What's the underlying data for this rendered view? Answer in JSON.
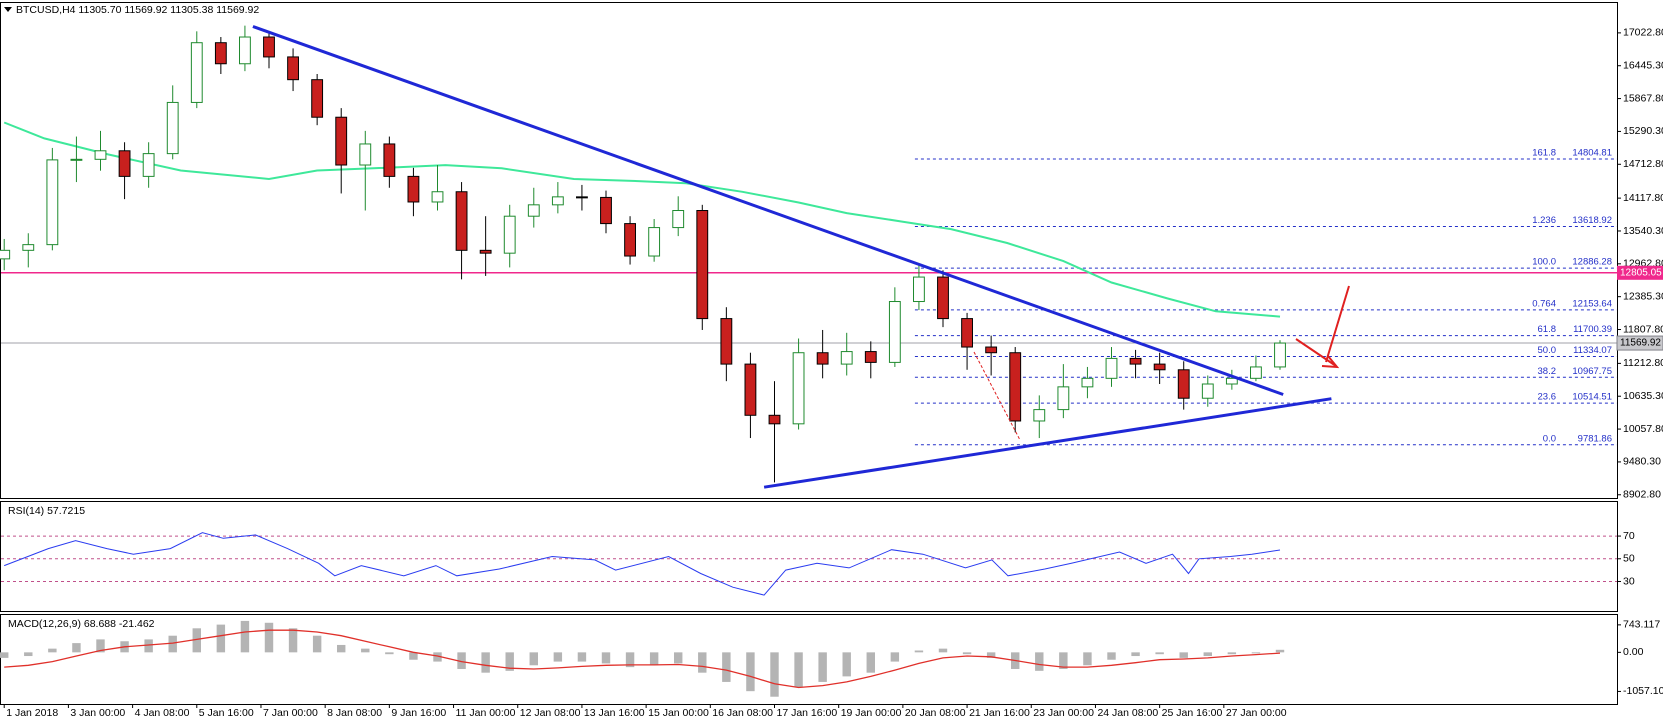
{
  "chart_data": [
    {
      "type": "candlestick",
      "header": "BTCUSD,H4  11305.70 11569.92 11305.38 11569.92",
      "x": [
        0,
        3,
        6,
        9,
        12,
        15,
        18,
        21,
        24,
        27,
        30,
        33,
        36,
        39,
        42,
        45,
        48,
        51,
        54,
        57,
        60,
        63,
        66,
        69,
        72,
        75,
        78,
        81,
        84,
        87,
        90,
        93,
        96,
        99,
        102,
        105,
        108,
        111,
        114,
        117,
        120,
        123,
        126,
        129,
        132,
        135,
        138,
        141,
        144,
        147,
        150,
        153,
        156,
        159
      ],
      "open": [
        13050,
        13200,
        13300,
        14790,
        14800,
        14950,
        14500,
        14900,
        15800,
        16850,
        16480,
        16950,
        16600,
        16200,
        15540,
        14700,
        15070,
        14500,
        14050,
        14230,
        13200,
        13150,
        13800,
        14000,
        14140,
        14130,
        13670,
        13100,
        13600,
        13900,
        12000,
        11200,
        10300,
        10150,
        11400,
        11200,
        11420,
        11230,
        12300,
        12730,
        12000,
        11500,
        11400,
        10200,
        10400,
        10800,
        10950,
        11300,
        11200,
        11100,
        10600,
        10850,
        10950,
        11150
      ],
      "high": [
        13400,
        13500,
        15000,
        15200,
        15300,
        15100,
        15100,
        16100,
        17050,
        16950,
        17150,
        17050,
        16750,
        16300,
        15700,
        15300,
        15200,
        14650,
        14700,
        14400,
        13800,
        14000,
        14300,
        14400,
        14350,
        14250,
        13800,
        13750,
        14150,
        14000,
        12200,
        11400,
        10900,
        11650,
        11800,
        11750,
        11600,
        12550,
        12950,
        12850,
        12100,
        11700,
        11500,
        10650,
        11200,
        11150,
        11500,
        11450,
        11400,
        11250,
        11000,
        11100,
        11350,
        11620
      ],
      "low": [
        12850,
        12900,
        13200,
        14400,
        14600,
        14100,
        14300,
        14800,
        15700,
        16300,
        16350,
        16400,
        16000,
        15400,
        14200,
        13900,
        14300,
        13800,
        13900,
        12690,
        12750,
        12900,
        13600,
        13850,
        13900,
        13500,
        12950,
        13000,
        13450,
        11800,
        10900,
        9900,
        9120,
        10050,
        10950,
        11000,
        10950,
        11150,
        12150,
        11850,
        11100,
        11000,
        10000,
        9900,
        10250,
        10600,
        10800,
        10950,
        10850,
        10400,
        10450,
        10750,
        10900,
        11100
      ],
      "close": [
        13200,
        13300,
        14790,
        14800,
        14950,
        14500,
        14900,
        15800,
        16850,
        16480,
        16950,
        16600,
        16200,
        15540,
        14700,
        15070,
        14500,
        14050,
        14230,
        13200,
        13150,
        13800,
        14000,
        14140,
        14130,
        13670,
        13100,
        13600,
        13900,
        12000,
        11200,
        10300,
        10150,
        11400,
        11200,
        11420,
        11230,
        12300,
        12730,
        12000,
        11500,
        11400,
        10200,
        10400,
        10800,
        10950,
        11300,
        11200,
        11100,
        10600,
        10850,
        10950,
        11150,
        11569.92
      ],
      "up_color": "#1f8a2e",
      "down_color": "#c8201e",
      "xlim": [
        -0.4,
        201
      ],
      "xticks": [
        {
          "value": 0,
          "label": "1 Jan 2018"
        },
        {
          "value": 8,
          "label": "3 Jan 00:00"
        },
        {
          "value": 16,
          "label": "4 Jan 08:00"
        },
        {
          "value": 24,
          "label": "5 Jan 16:00"
        },
        {
          "value": 32,
          "label": "7 Jan 00:00"
        },
        {
          "value": 40,
          "label": "8 Jan 08:00"
        },
        {
          "value": 48,
          "label": "9 Jan 16:00"
        },
        {
          "value": 56,
          "label": "11 Jan 00:00"
        },
        {
          "value": 64,
          "label": "12 Jan 08:00"
        },
        {
          "value": 72,
          "label": "13 Jan 16:00"
        },
        {
          "value": 80,
          "label": "15 Jan 00:00"
        },
        {
          "value": 88,
          "label": "16 Jan 08:00"
        },
        {
          "value": 96,
          "label": "17 Jan 16:00"
        },
        {
          "value": 104,
          "label": "19 Jan 00:00"
        },
        {
          "value": 112,
          "label": "20 Jan 08:00"
        },
        {
          "value": 120,
          "label": "21 Jan 16:00"
        },
        {
          "value": 128,
          "label": "23 Jan 00:00"
        },
        {
          "value": 136,
          "label": "24 Jan 08:00"
        },
        {
          "value": 144,
          "label": "25 Jan 16:00"
        },
        {
          "value": 152,
          "label": "27 Jan 00:00"
        }
      ],
      "ylim": [
        8846,
        17548
      ],
      "yticks": [
        {
          "value": 17022.8,
          "label": "17022.80"
        },
        {
          "value": 16445.3,
          "label": "16445.30"
        },
        {
          "value": 15867.8,
          "label": "15867.80"
        },
        {
          "value": 15290.3,
          "label": "15290.30"
        },
        {
          "value": 14712.8,
          "label": "14712.80"
        },
        {
          "value": 14117.8,
          "label": "14117.80"
        },
        {
          "value": 13540.3,
          "label": "13540.30"
        },
        {
          "value": 12962.8,
          "label": "12962.80"
        },
        {
          "value": 12385.3,
          "label": "12385.30"
        },
        {
          "value": 11807.8,
          "label": "11807.80"
        },
        {
          "value": 11212.8,
          "label": "11212.80"
        },
        {
          "value": 10635.3,
          "label": "10635.30"
        },
        {
          "value": 10057.8,
          "label": "10057.80"
        },
        {
          "value": 9480.3,
          "label": "9480.30"
        },
        {
          "value": 8902.8,
          "label": "8902.80"
        }
      ],
      "grid": false,
      "ma": {
        "color": "#3ee89a",
        "x": [
          0,
          5,
          13,
          22,
          33,
          39,
          46,
          55,
          62,
          71,
          79,
          85,
          92,
          99,
          105,
          112,
          118,
          125,
          132,
          138,
          145,
          151,
          159
        ],
        "values": [
          15448,
          15167,
          14885,
          14604,
          14454,
          14604,
          14642,
          14698,
          14642,
          14454,
          14417,
          14379,
          14229,
          14041,
          13854,
          13704,
          13573,
          13329,
          13010,
          12635,
          12354,
          12129,
          12035
        ]
      },
      "trendlines": [
        {
          "color": "#1f28d6",
          "x": [
            31,
            159.4
          ],
          "values": [
            17135,
            10666
          ]
        },
        {
          "color": "#1f28d6",
          "x": [
            94.7,
            165.4
          ],
          "values": [
            9035,
            10591
          ]
        }
      ],
      "fib": {
        "color": "#2430c8",
        "x_start": 113.5,
        "levels": [
          {
            "level": "161.8",
            "price": 14804.81
          },
          {
            "level": "1.236",
            "price": 13618.92
          },
          {
            "level": "100.0",
            "price": 12886.28
          },
          {
            "level": "0.764",
            "price": 12153.64
          },
          {
            "level": "61.8",
            "price": 11700.39
          },
          {
            "level": "50.0",
            "price": 11334.07
          },
          {
            "level": "38.2",
            "price": 10967.75
          },
          {
            "level": "23.6",
            "price": 10514.51
          },
          {
            "level": "0.0",
            "price": 9781.86
          }
        ]
      },
      "hline": {
        "value": 12805.05,
        "color": "#f0288c"
      },
      "current_price": 11569.92
    },
    {
      "type": "line",
      "title": "RSI(14) 57.7215",
      "x": [
        0,
        5.5,
        8.9,
        12.8,
        16.1,
        20.7,
        24.7,
        27.3,
        31.3,
        35.3,
        39.2,
        41.2,
        44.5,
        49.8,
        53.8,
        56.4,
        61.7,
        68.3,
        73.6,
        76.2,
        82.8,
        86.8,
        90.8,
        94.7,
        97.4,
        101.3,
        105.3,
        110.6,
        114.5,
        119.8,
        123.1,
        125.1,
        129.7,
        133,
        139,
        142.3,
        145.6,
        147.6,
        148.9,
        152.8,
        155.5,
        159
      ],
      "values": [
        44,
        59,
        66,
        59,
        54,
        59,
        73,
        68,
        71,
        59,
        46,
        35,
        44,
        35,
        44,
        35,
        41,
        52,
        49,
        40,
        52,
        37,
        25,
        18,
        40,
        46,
        42,
        58,
        54,
        42,
        49,
        35,
        41,
        46,
        56,
        46,
        54,
        37,
        50,
        52,
        54,
        57.7215
      ],
      "color": "#2a3cf0",
      "ylim": [
        4,
        100
      ],
      "yticks": [
        70,
        50,
        30
      ],
      "grid": true,
      "grid_color": "#c0508a"
    },
    {
      "type": "macd",
      "title": "MACD(12,26,9) 68.688 -21.462",
      "x": [
        0,
        3,
        6,
        9,
        12,
        15,
        18,
        21,
        24,
        27,
        30,
        33,
        36,
        39,
        42,
        45,
        48,
        51,
        54,
        57,
        60,
        63,
        66,
        69,
        72,
        75,
        78,
        81,
        84,
        87,
        90,
        93,
        96,
        99,
        102,
        105,
        108,
        111,
        114,
        117,
        120,
        123,
        126,
        129,
        132,
        135,
        138,
        141,
        144,
        147,
        150,
        153,
        156,
        159
      ],
      "series": [
        {
          "color": "#b4b4b4",
          "values": [
            -150,
            -100,
            100,
            250,
            350,
            300,
            350,
            450,
            650,
            750,
            850,
            800,
            650,
            450,
            200,
            100,
            -50,
            -200,
            -250,
            -450,
            -550,
            -500,
            -350,
            -250,
            -250,
            -300,
            -400,
            -350,
            -300,
            -550,
            -800,
            -1050,
            -1200,
            -950,
            -800,
            -650,
            -550,
            -250,
            50,
            100,
            -50,
            -150,
            -450,
            -500,
            -450,
            -350,
            -200,
            -100,
            -50,
            -150,
            -100,
            -50,
            0,
            68.688
          ]
        },
        {
          "color": "#e0302a",
          "values": [
            -400,
            -350,
            -250,
            -100,
            50,
            150,
            200,
            250,
            350,
            450,
            550,
            600,
            600,
            550,
            450,
            300,
            150,
            0,
            -100,
            -250,
            -350,
            -430,
            -450,
            -420,
            -380,
            -350,
            -340,
            -340,
            -330,
            -380,
            -480,
            -650,
            -850,
            -950,
            -900,
            -800,
            -650,
            -480,
            -300,
            -150,
            -100,
            -120,
            -220,
            -330,
            -400,
            -400,
            -350,
            -280,
            -200,
            -180,
            -150,
            -100,
            -60,
            -21.462
          ]
        }
      ],
      "ylim": [
        -1397,
        1010
      ],
      "yticks": [
        743.117,
        {
          "value": 0,
          "label": "0.00"
        },
        -1057.104
      ],
      "grid": false
    }
  ]
}
